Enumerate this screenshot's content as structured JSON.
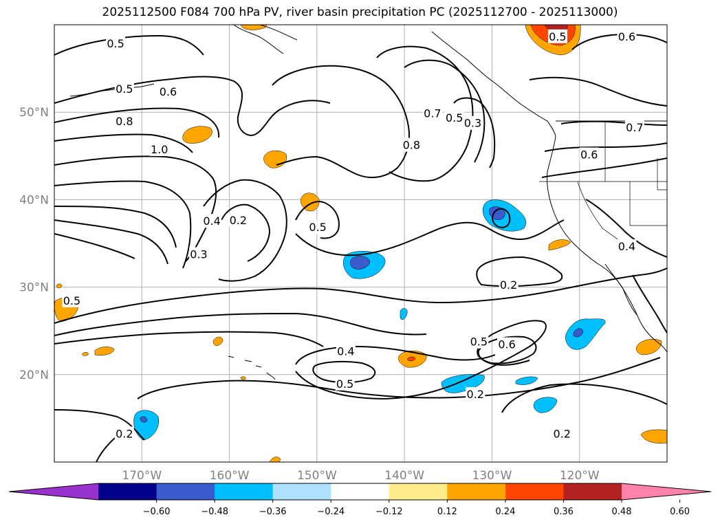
{
  "title": "2025112500 F084 700 hPa PV, river basin precipitation PC (2025112700 - 2025113000)",
  "map": {
    "lat_labels": [
      {
        "lat": 50,
        "text": "50°N"
      },
      {
        "lat": 40,
        "text": "40°N"
      },
      {
        "lat": 30,
        "text": "30°N"
      },
      {
        "lat": 20,
        "text": "20°N"
      }
    ],
    "lon_labels": [
      {
        "lon": -170,
        "text": "170°W"
      },
      {
        "lon": -160,
        "text": "160°W"
      },
      {
        "lon": -150,
        "text": "150°W"
      },
      {
        "lon": -140,
        "text": "140°W"
      },
      {
        "lon": -130,
        "text": "130°W"
      },
      {
        "lon": -120,
        "text": "120°W"
      }
    ],
    "contour_labels": [
      {
        "text": "0.5",
        "lon": -173,
        "lat": 57.8
      },
      {
        "text": "0.5",
        "lon": -172,
        "lat": 52.6
      },
      {
        "text": "0.6",
        "lon": -167,
        "lat": 52.3
      },
      {
        "text": "0.8",
        "lon": -172,
        "lat": 48.9
      },
      {
        "text": "1.0",
        "lon": -168,
        "lat": 45.7
      },
      {
        "text": "0.7",
        "lon": -136.8,
        "lat": 49.8
      },
      {
        "text": "0.5",
        "lon": -134.3,
        "lat": 49.3
      },
      {
        "text": "0.3",
        "lon": -132.2,
        "lat": 48.7
      },
      {
        "text": "0.8",
        "lon": -139.2,
        "lat": 46.2
      },
      {
        "text": "0.4",
        "lon": -162,
        "lat": 37.5
      },
      {
        "text": "0.2",
        "lon": -159,
        "lat": 37.6
      },
      {
        "text": "0.3",
        "lon": -163.5,
        "lat": 33.7
      },
      {
        "text": "0.5",
        "lon": -149.9,
        "lat": 36.8
      },
      {
        "text": "0.2",
        "lon": -128.1,
        "lat": 30.2
      },
      {
        "text": "0.5",
        "lon": -178,
        "lat": 28.4
      },
      {
        "text": "0.4",
        "lon": -146.7,
        "lat": 22.6
      },
      {
        "text": "0.5",
        "lon": -146.8,
        "lat": 18.9
      },
      {
        "text": "0.5",
        "lon": -131.5,
        "lat": 23.7
      },
      {
        "text": "0.6",
        "lon": -128.3,
        "lat": 23.4
      },
      {
        "text": "0.2",
        "lon": -131.9,
        "lat": 17.7
      },
      {
        "text": "0.2",
        "lon": -122,
        "lat": 13.2
      },
      {
        "text": "0.2",
        "lon": -172,
        "lat": 13.2
      },
      {
        "text": "0.5",
        "lon": -122.5,
        "lat": 58.6
      },
      {
        "text": "0.6",
        "lon": -114.6,
        "lat": 58.6
      },
      {
        "text": "0.7",
        "lon": -113.7,
        "lat": 48.2
      },
      {
        "text": "0.6",
        "lon": -118.9,
        "lat": 45.1
      },
      {
        "text": "0.4",
        "lon": -114.6,
        "lat": 34.6
      }
    ]
  },
  "colorbar": {
    "colors": [
      "#9932cc",
      "#00008b",
      "#3b5bcc",
      "#00bfff",
      "#b0e2ff",
      "#ffffff",
      "#ffec8b",
      "#ffa500",
      "#ff4500",
      "#b22222",
      "#ff82ab"
    ],
    "tick_labels": [
      "−0.60",
      "−0.48",
      "−0.36",
      "−0.24",
      "−0.12",
      "0.12",
      "0.24",
      "0.36",
      "0.48",
      "0.60"
    ]
  }
}
